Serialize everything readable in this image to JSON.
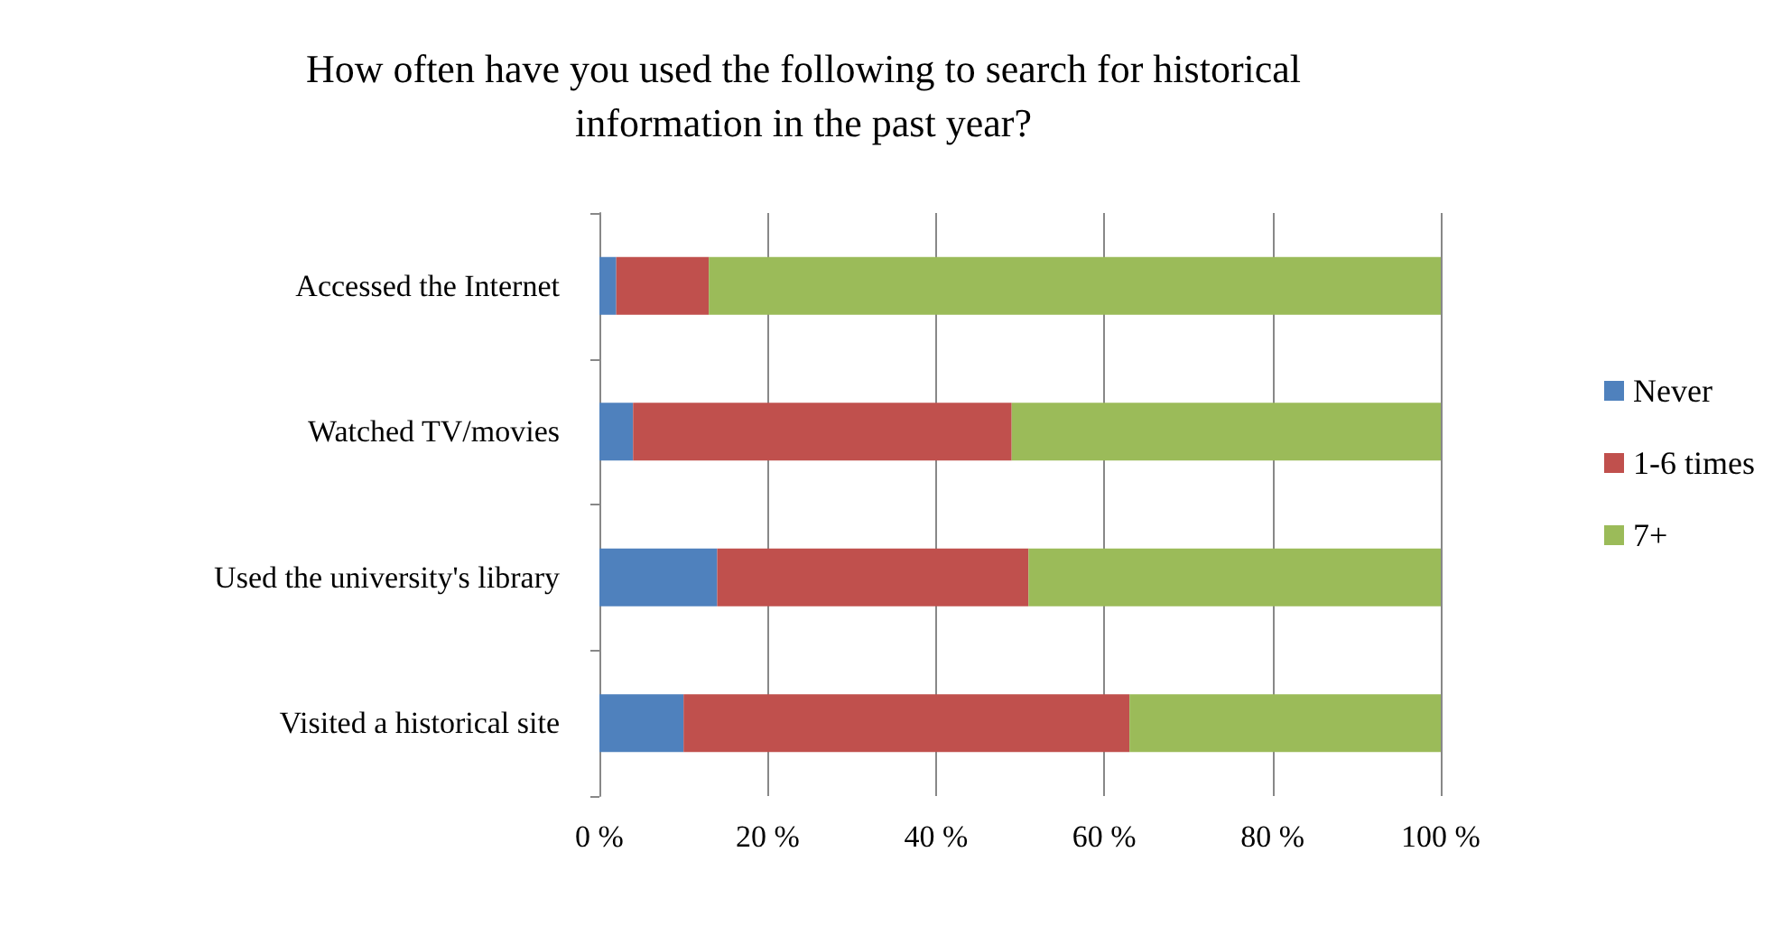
{
  "chart_data": {
    "type": "bar",
    "orientation": "horizontal",
    "stacked": true,
    "title": "How often have you used the following to search for historical\ninformation in the past year?",
    "categories": [
      "Accessed the Internet",
      "Watched TV/movies",
      "Used the university's library",
      "Visited a historical site"
    ],
    "series": [
      {
        "name": "Never",
        "color": "#4f81bd",
        "values": [
          2,
          4,
          14,
          10
        ]
      },
      {
        "name": "1-6 times",
        "color": "#c0504d",
        "values": [
          11,
          45,
          37,
          53
        ]
      },
      {
        "name": "7+",
        "color": "#9bbb59",
        "values": [
          87,
          51,
          49,
          37
        ]
      }
    ],
    "xlim": [
      0,
      100
    ],
    "xticks": [
      {
        "value": 0,
        "label": "0 %"
      },
      {
        "value": 20,
        "label": "20 %"
      },
      {
        "value": 40,
        "label": "40 %"
      },
      {
        "value": 60,
        "label": "60 %"
      },
      {
        "value": 80,
        "label": "80 %"
      },
      {
        "value": 100,
        "label": "100 %"
      }
    ],
    "grid": "x",
    "legend": "right"
  }
}
